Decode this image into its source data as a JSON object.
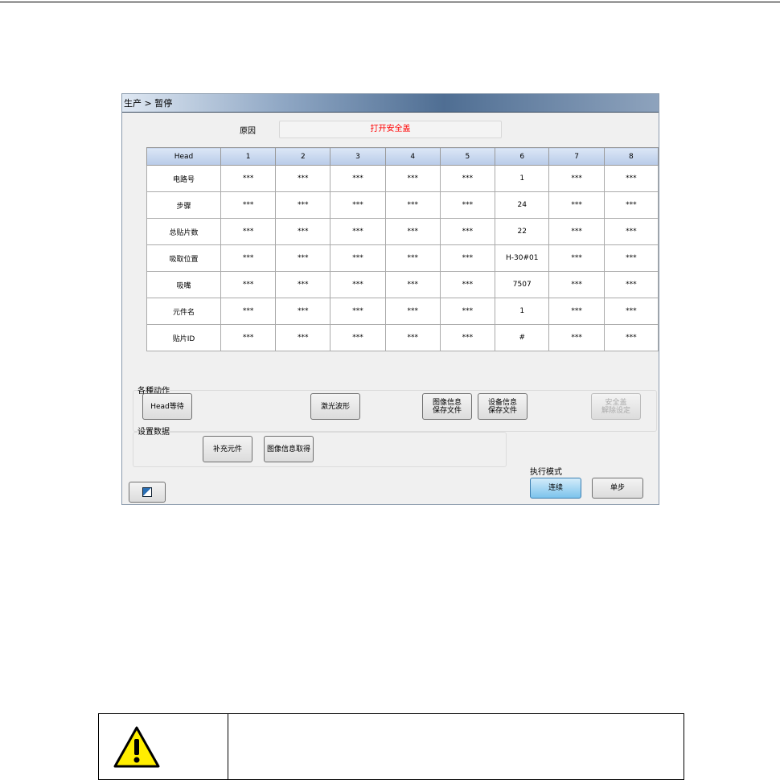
{
  "window": {
    "breadcrumb": "生产 > 暂停"
  },
  "reason": {
    "label": "原因",
    "value": "打开安全盖",
    "value_color": "#ff0000"
  },
  "table": {
    "headers": [
      "Head",
      "1",
      "2",
      "3",
      "4",
      "5",
      "6",
      "7",
      "8"
    ],
    "rows": [
      [
        "电路号",
        "***",
        "***",
        "***",
        "***",
        "***",
        "1",
        "***",
        "***"
      ],
      [
        "步骤",
        "***",
        "***",
        "***",
        "***",
        "***",
        "24",
        "***",
        "***"
      ],
      [
        "总贴片数",
        "***",
        "***",
        "***",
        "***",
        "***",
        "22",
        "***",
        "***"
      ],
      [
        "吸取位置",
        "***",
        "***",
        "***",
        "***",
        "***",
        "H-30#01",
        "***",
        "***"
      ],
      [
        "吸嘴",
        "***",
        "***",
        "***",
        "***",
        "***",
        "7507",
        "***",
        "***"
      ],
      [
        "元件名",
        "***",
        "***",
        "***",
        "***",
        "***",
        "1",
        "***",
        "***"
      ],
      [
        "贴片ID",
        "***",
        "***",
        "***",
        "***",
        "***",
        "#",
        "***",
        "***"
      ]
    ]
  },
  "actions": {
    "label": "各種动作",
    "head_wait": "Head等待",
    "laser_wave": "激光波形",
    "image_save": "图像信息\n保存文件",
    "device_save": "设备信息\n保存文件",
    "cover_release": "安全盖\n解除设定"
  },
  "settings": {
    "label": "设置数据",
    "supplement": "补充元件",
    "image_get": "图像信息取得"
  },
  "mode": {
    "label": "执行模式",
    "continuous": "连续",
    "step": "单步"
  },
  "icons": {
    "small_button": "restore-icon",
    "warning": "warning-triangle-icon"
  }
}
